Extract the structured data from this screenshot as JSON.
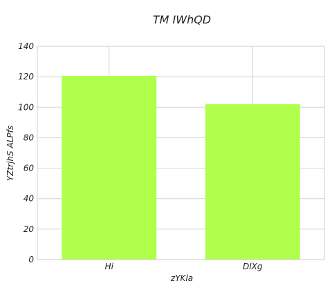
{
  "chart_data": {
    "type": "bar",
    "title": "TM  IWhQD",
    "xlabel": "zYKla",
    "ylabel": "YZtrjhS ALPfs",
    "categories": [
      "Hi",
      "DlXg"
    ],
    "values": [
      120.5,
      102
    ],
    "ylim": [
      0,
      140
    ],
    "yticks": [
      0,
      20,
      40,
      60,
      80,
      100,
      120,
      140
    ],
    "grid": true,
    "bar_color": "#b0ff4a"
  }
}
